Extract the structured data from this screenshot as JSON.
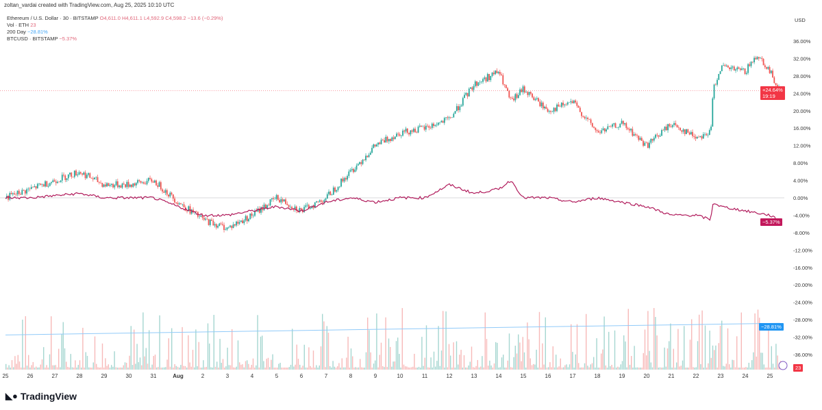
{
  "header": {
    "credit": "zoltan_vardai created with TradingView.com, Aug 25, 2025 10:10 UTC"
  },
  "legend": {
    "symbol": "Ethereum / U.S. Dollar · 30 · BITSTAMP",
    "ohlc": "O4,611.0  H4,611.1  L4,592.9  C4,598.2  −13.6 (−0.29%)",
    "vol_label": "Vol · ETH",
    "vol_value": "23",
    "ma_label": "200 Day",
    "ma_value": "−28.81%",
    "btc_label": "BTCUSD · BITSTAMP",
    "btc_value": "−5.37%"
  },
  "badges": {
    "eth": "+24.64%",
    "eth_timer": "19:19",
    "btc": "−5.37%",
    "ma": "−28.81%",
    "vol": "23"
  },
  "logo": "TradingView",
  "colors": {
    "eth_up": "#26a69a",
    "eth_down": "#ef5350",
    "btc": "#b0195a",
    "ma": "#90caf9",
    "eth_badge": "#f23645",
    "btc_badge": "#c2185b",
    "ma_badge": "#2196f3"
  },
  "chart_data": {
    "type": "line",
    "ylabel": "USD",
    "yunit": "%",
    "ylim": [
      -38,
      38
    ],
    "yticks": [
      "36.00%",
      "32.00%",
      "28.00%",
      "24.00%",
      "20.00%",
      "16.00%",
      "12.00%",
      "8.00%",
      "4.00%",
      "0.00%",
      "-4.00%",
      "-8.00%",
      "-12.00%",
      "-16.00%",
      "-20.00%",
      "-24.00%",
      "-28.00%",
      "-32.00%",
      "-36.00%"
    ],
    "xticks": [
      "25",
      "26",
      "27",
      "28",
      "29",
      "30",
      "31",
      "Aug",
      "2",
      "3",
      "4",
      "5",
      "6",
      "7",
      "8",
      "9",
      "10",
      "11",
      "12",
      "13",
      "14",
      "15",
      "16",
      "17",
      "18",
      "19",
      "20",
      "21",
      "22",
      "23",
      "24",
      "25"
    ],
    "series": [
      {
        "name": "Ethereum / U.S. Dollar",
        "x": [
          0,
          1,
          2,
          3,
          4,
          5,
          6,
          7,
          8,
          9,
          10,
          11,
          12,
          13,
          14,
          15,
          16,
          17,
          18,
          19,
          20,
          20.5,
          21,
          22,
          23,
          24,
          25,
          26,
          27,
          28,
          28.6,
          28.7,
          29,
          30,
          30.5,
          31,
          31.4
        ],
        "values": [
          0,
          2,
          4,
          6,
          3,
          3,
          4,
          -1,
          -5,
          -7,
          -4,
          0,
          -3,
          0,
          6,
          12,
          15,
          16,
          18,
          26,
          29,
          22,
          25,
          20,
          22,
          15,
          17,
          12,
          17,
          14,
          15,
          25,
          30,
          29,
          33,
          29,
          24.64
        ]
      },
      {
        "name": "BTCUSD",
        "x": [
          0,
          1,
          2,
          3,
          4,
          5,
          6,
          7,
          8,
          9,
          10,
          11,
          12,
          13,
          14,
          15,
          16,
          17,
          18,
          19,
          20,
          20.5,
          21,
          22,
          23,
          24,
          25,
          26,
          27,
          28,
          28.6,
          28.7,
          29,
          30,
          31,
          31.4
        ],
        "values": [
          0,
          0,
          0.5,
          1,
          0,
          0,
          0,
          -2,
          -4,
          -4,
          -3,
          -2,
          -3,
          -1,
          0,
          -1,
          0,
          0,
          3,
          1,
          2,
          4,
          0,
          0,
          -1,
          0,
          -1,
          -2,
          -4,
          -4,
          -5,
          -1,
          -2,
          -3,
          -4,
          -5.37
        ]
      },
      {
        "name": "200 Day",
        "x": [
          0,
          31.4
        ],
        "values": [
          -31.5,
          -28.81
        ]
      }
    ]
  }
}
